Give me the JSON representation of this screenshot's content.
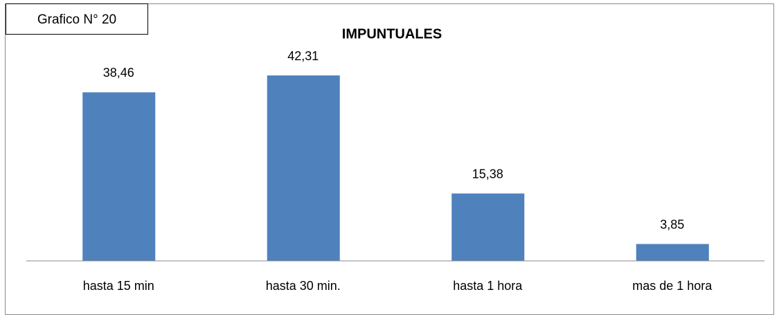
{
  "chart_data": {
    "type": "bar",
    "title": "IMPUNTUALES",
    "annotation": "Grafico N° 20",
    "categories": [
      "hasta 15 min",
      "hasta 30 min.",
      "hasta 1 hora",
      "mas de 1 hora"
    ],
    "values": [
      38.46,
      42.31,
      15.38,
      3.85
    ],
    "value_labels": [
      "38,46",
      "42,31",
      "15,38",
      "3,85"
    ],
    "color": "#4f81bd",
    "ylim": [
      0,
      45
    ]
  }
}
